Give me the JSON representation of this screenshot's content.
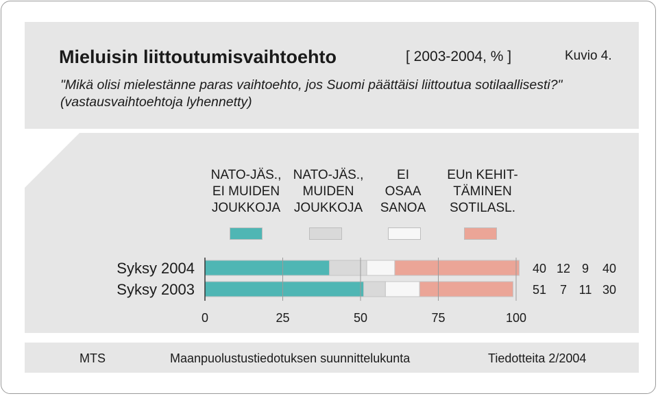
{
  "header": {
    "title": "Mieluisin liittoutumisvaihtoehto",
    "range": "[ 2003-2004, % ]",
    "figure_label": "Kuvio 4.",
    "question": "\"Mikä olisi mielestänne paras vaihtoehto, jos Suomi päättäisi liittoutua sotilaallisesti?\"  (vastausvaihtoehtoja lyhennetty)"
  },
  "legend": [
    {
      "label_lines": [
        "NATO-JÄS.,",
        "EI MUIDEN",
        "JOUKKOJA"
      ],
      "color": "#4fb6b4"
    },
    {
      "label_lines": [
        "NATO-JÄS.,",
        "MUIDEN",
        "JOUKKOJA"
      ],
      "color": "#d9d9d9"
    },
    {
      "label_lines": [
        "EI",
        "OSAA",
        "SANOA"
      ],
      "color": "#f7f7f7"
    },
    {
      "label_lines": [
        "EUn KEHIT-",
        "TÄMINEN",
        "SOTILASL."
      ],
      "color": "#eba597"
    }
  ],
  "chart_data": {
    "type": "bar",
    "orientation": "horizontal",
    "stacked": true,
    "categories": [
      "Syksy 2004",
      "Syksy 2003"
    ],
    "series": [
      {
        "name": "NATO-JÄS., EI MUIDEN JOUKKOJA",
        "values": [
          40,
          51
        ],
        "color": "#4fb6b4"
      },
      {
        "name": "NATO-JÄS., MUIDEN JOUKKOJA",
        "values": [
          12,
          7
        ],
        "color": "#d9d9d9"
      },
      {
        "name": "EI OSAA SANOA",
        "values": [
          9,
          11
        ],
        "color": "#f7f7f7"
      },
      {
        "name": "EUn KEHITTÄMINEN SOTILASL.",
        "values": [
          40,
          30
        ],
        "color": "#eba597"
      }
    ],
    "xlim": [
      0,
      100
    ],
    "xticks": [
      0,
      25,
      50,
      75,
      100
    ],
    "grid": true,
    "value_labels": [
      [
        "40",
        "12",
        "9",
        "40"
      ],
      [
        "51",
        "7",
        "11",
        "30"
      ]
    ]
  },
  "footer": {
    "left": "MTS",
    "center": "Maanpuolustustiedotuksen suunnittelukunta",
    "right": "Tiedotteita 2/2004"
  }
}
